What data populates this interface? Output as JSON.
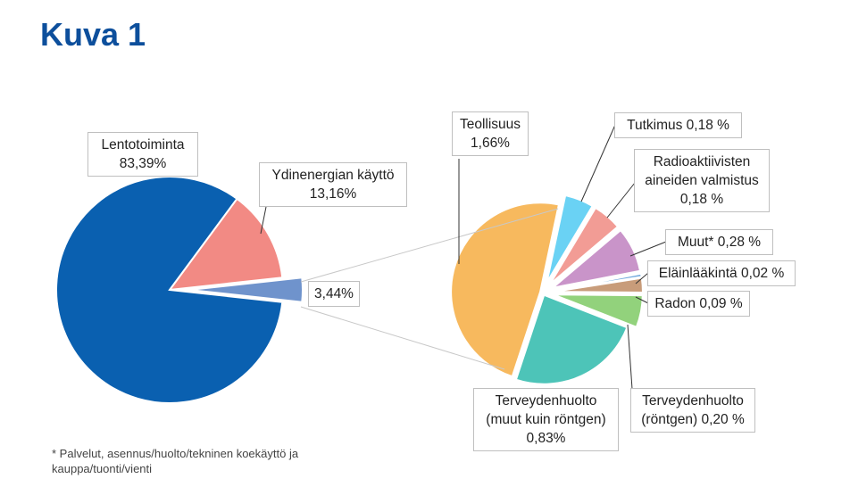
{
  "chart_data": [
    {
      "type": "pie",
      "title": "Kuva 1",
      "categories": [
        "Lentotoiminta",
        "Ydinenergian käyttö",
        null
      ],
      "values": [
        83.39,
        13.16,
        3.44
      ],
      "value_labels": [
        "83,39%",
        "13,16%",
        "3,44%"
      ],
      "colors": [
        "#0a60b0",
        "#f28a84",
        "#6f93cc"
      ]
    },
    {
      "type": "pie",
      "categories": [
        "Tutkimus",
        "Radioaktiivisten aineiden valmistus",
        "Muut*",
        "Eläinlääkintä",
        "Radon",
        "Terveydenhuolto (röntgen)",
        "Terveydenhuolto (muut kuin röntgen)",
        "Teollisuus"
      ],
      "values": [
        0.18,
        0.18,
        0.28,
        0.02,
        0.09,
        0.2,
        0.83,
        1.66
      ],
      "value_labels": [
        "0,18 %",
        "0,18 %",
        "0,28 %",
        "0,02 %",
        "0,09 %",
        "0,20 %",
        "0,83%",
        "1,66%"
      ],
      "colors": [
        "#6ad2f4",
        "#f29c95",
        "#c994c9",
        "#6fa8dc",
        "#c89c7a",
        "#92d27c",
        "#4dc4b8",
        "#f7b95e"
      ],
      "note": "* Palvelut, asennus/huolto/tekninen koekäyttö ja kauppa/tuonti/vienti"
    }
  ]
}
